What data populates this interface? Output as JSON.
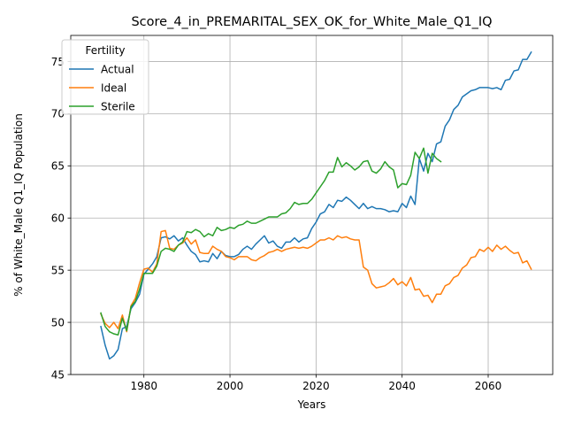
{
  "chart_data": {
    "type": "line",
    "title": "Score_4_in_PREMARITAL_SEX_OK_for_White_Male_Q1_IQ",
    "xlabel": "Years",
    "ylabel": "% of White_Male Q1_IQ Population",
    "xlim": [
      1963,
      2075
    ],
    "ylim": [
      45,
      77.5
    ],
    "xticks": [
      1980,
      2000,
      2020,
      2040,
      2060
    ],
    "yticks": [
      45,
      50,
      55,
      60,
      65,
      70,
      75
    ],
    "grid": true,
    "legend": {
      "title": "Fertility",
      "placement": "top-left"
    },
    "series": [
      {
        "name": "Actual",
        "color": "#1f77b4",
        "x": [
          1970,
          1971,
          1972,
          1973,
          1974,
          1975,
          1976,
          1977,
          1978,
          1979,
          1980,
          1981,
          1982,
          1983,
          1984,
          1985,
          1986,
          1987,
          1988,
          1989,
          1990,
          1991,
          1992,
          1993,
          1994,
          1995,
          1996,
          1997,
          1998,
          1999,
          2000,
          2001,
          2002,
          2003,
          2004,
          2005,
          2006,
          2007,
          2008,
          2009,
          2010,
          2011,
          2012,
          2013,
          2014,
          2015,
          2016,
          2017,
          2018,
          2019,
          2020,
          2021,
          2022,
          2023,
          2024,
          2025,
          2026,
          2027,
          2028,
          2029,
          2030,
          2031,
          2032,
          2033,
          2034,
          2035,
          2036,
          2037,
          2038,
          2039,
          2040,
          2041,
          2042,
          2043,
          2044,
          2045,
          2046,
          2047,
          2048,
          2049,
          2050,
          2051,
          2052,
          2053,
          2054,
          2055,
          2056,
          2057,
          2058,
          2059,
          2060,
          2061,
          2062,
          2063,
          2064,
          2065,
          2066,
          2067,
          2068,
          2069,
          2070
        ],
        "values": [
          49.6,
          47.8,
          46.5,
          46.8,
          47.4,
          49.4,
          49.6,
          51.3,
          51.9,
          52.7,
          54.6,
          55.1,
          55.6,
          56.3,
          58.1,
          58.2,
          58.0,
          58.3,
          57.8,
          58.1,
          57.4,
          56.8,
          56.5,
          55.8,
          55.9,
          55.8,
          56.6,
          56.1,
          56.8,
          56.4,
          56.3,
          56.3,
          56.5,
          57.0,
          57.3,
          57.0,
          57.5,
          57.9,
          58.3,
          57.6,
          57.8,
          57.3,
          57.1,
          57.7,
          57.7,
          58.1,
          57.7,
          58.0,
          58.1,
          59.0,
          59.6,
          60.4,
          60.6,
          61.3,
          61.0,
          61.7,
          61.6,
          62.0,
          61.7,
          61.3,
          60.9,
          61.4,
          60.9,
          61.1,
          60.9,
          60.9,
          60.8,
          60.6,
          60.7,
          60.6,
          61.4,
          61.0,
          62.1,
          61.3,
          65.7,
          64.5,
          66.2,
          65.4,
          67.1,
          67.3,
          68.8,
          69.4,
          70.4,
          70.8,
          71.6,
          71.9,
          72.2,
          72.3,
          72.5,
          72.5,
          72.5,
          72.4,
          72.5,
          72.3,
          73.2,
          73.3,
          74.1,
          74.2,
          75.2,
          75.2,
          75.9
        ]
      },
      {
        "name": "Ideal",
        "color": "#ff7f0e",
        "x": [
          1970,
          1971,
          1972,
          1973,
          1974,
          1975,
          1976,
          1977,
          1978,
          1979,
          1980,
          1981,
          1982,
          1983,
          1984,
          1985,
          1986,
          1987,
          1988,
          1989,
          1990,
          1991,
          1992,
          1993,
          1994,
          1995,
          1996,
          1997,
          1998,
          1999,
          2000,
          2001,
          2002,
          2003,
          2004,
          2005,
          2006,
          2007,
          2008,
          2009,
          2010,
          2011,
          2012,
          2013,
          2014,
          2015,
          2016,
          2017,
          2018,
          2019,
          2020,
          2021,
          2022,
          2023,
          2024,
          2025,
          2026,
          2027,
          2028,
          2029,
          2030,
          2031,
          2032,
          2033,
          2034,
          2035,
          2036,
          2037,
          2038,
          2039,
          2040,
          2041,
          2042,
          2043,
          2044,
          2045,
          2046,
          2047,
          2048,
          2049,
          2050,
          2051,
          2052,
          2053,
          2054,
          2055,
          2056,
          2057,
          2058,
          2059,
          2060,
          2061,
          2062,
          2063,
          2064,
          2065,
          2066,
          2067,
          2068,
          2069,
          2070
        ],
        "values": [
          50.8,
          49.9,
          49.5,
          50.0,
          49.4,
          50.7,
          49.1,
          51.6,
          52.3,
          53.8,
          55.1,
          55.2,
          54.8,
          55.6,
          58.7,
          58.8,
          57.1,
          57.0,
          57.4,
          57.6,
          58.1,
          57.5,
          57.9,
          56.7,
          56.6,
          56.6,
          57.3,
          57.0,
          56.8,
          56.3,
          56.2,
          56.0,
          56.3,
          56.3,
          56.3,
          56.0,
          55.9,
          56.2,
          56.4,
          56.7,
          56.8,
          57.0,
          56.8,
          57.0,
          57.1,
          57.2,
          57.1,
          57.2,
          57.1,
          57.3,
          57.6,
          57.9,
          57.9,
          58.1,
          57.9,
          58.3,
          58.1,
          58.2,
          58.0,
          57.9,
          57.9,
          55.3,
          55.0,
          53.7,
          53.3,
          53.4,
          53.5,
          53.8,
          54.2,
          53.6,
          53.9,
          53.5,
          54.3,
          53.1,
          53.2,
          52.5,
          52.6,
          51.9,
          52.7,
          52.7,
          53.5,
          53.7,
          54.3,
          54.5,
          55.2,
          55.5,
          56.2,
          56.3,
          57.0,
          56.8,
          57.2,
          56.8,
          57.4,
          57.0,
          57.3,
          56.9,
          56.6,
          56.7,
          55.7,
          55.9,
          55.1
        ]
      },
      {
        "name": "Sterile",
        "color": "#2ca02c",
        "x": [
          1970,
          1971,
          1972,
          1973,
          1974,
          1975,
          1976,
          1977,
          1978,
          1979,
          1980,
          1981,
          1982,
          1983,
          1984,
          1985,
          1986,
          1987,
          1988,
          1989,
          1990,
          1991,
          1992,
          1993,
          1994,
          1995,
          1996,
          1997,
          1998,
          1999,
          2000,
          2001,
          2002,
          2003,
          2004,
          2005,
          2006,
          2007,
          2008,
          2009,
          2010,
          2011,
          2012,
          2013,
          2014,
          2015,
          2016,
          2017,
          2018,
          2019,
          2020,
          2021,
          2022,
          2023,
          2024,
          2025,
          2026,
          2027,
          2028,
          2029,
          2030,
          2031,
          2032,
          2033,
          2034,
          2035,
          2036,
          2037,
          2038,
          2039,
          2040,
          2041,
          2042,
          2043,
          2044,
          2045,
          2046,
          2047,
          2048,
          2049
        ],
        "values": [
          50.9,
          49.6,
          49.1,
          48.9,
          48.8,
          50.4,
          49.2,
          51.5,
          52.0,
          53.2,
          54.7,
          54.7,
          54.7,
          55.4,
          56.8,
          57.1,
          57.0,
          56.8,
          57.4,
          57.7,
          58.7,
          58.6,
          58.9,
          58.7,
          58.2,
          58.5,
          58.3,
          59.1,
          58.8,
          58.9,
          59.1,
          59.0,
          59.3,
          59.4,
          59.7,
          59.5,
          59.5,
          59.7,
          59.9,
          60.1,
          60.1,
          60.1,
          60.4,
          60.5,
          60.9,
          61.5,
          61.3,
          61.4,
          61.4,
          61.8,
          62.4,
          63.0,
          63.6,
          64.4,
          64.4,
          65.8,
          64.9,
          65.3,
          65.0,
          64.6,
          64.9,
          65.4,
          65.5,
          64.5,
          64.3,
          64.7,
          65.4,
          64.9,
          64.6,
          62.9,
          63.3,
          63.2,
          64.1,
          66.3,
          65.7,
          66.7,
          64.3,
          66.2,
          65.7,
          65.4
        ]
      }
    ]
  }
}
